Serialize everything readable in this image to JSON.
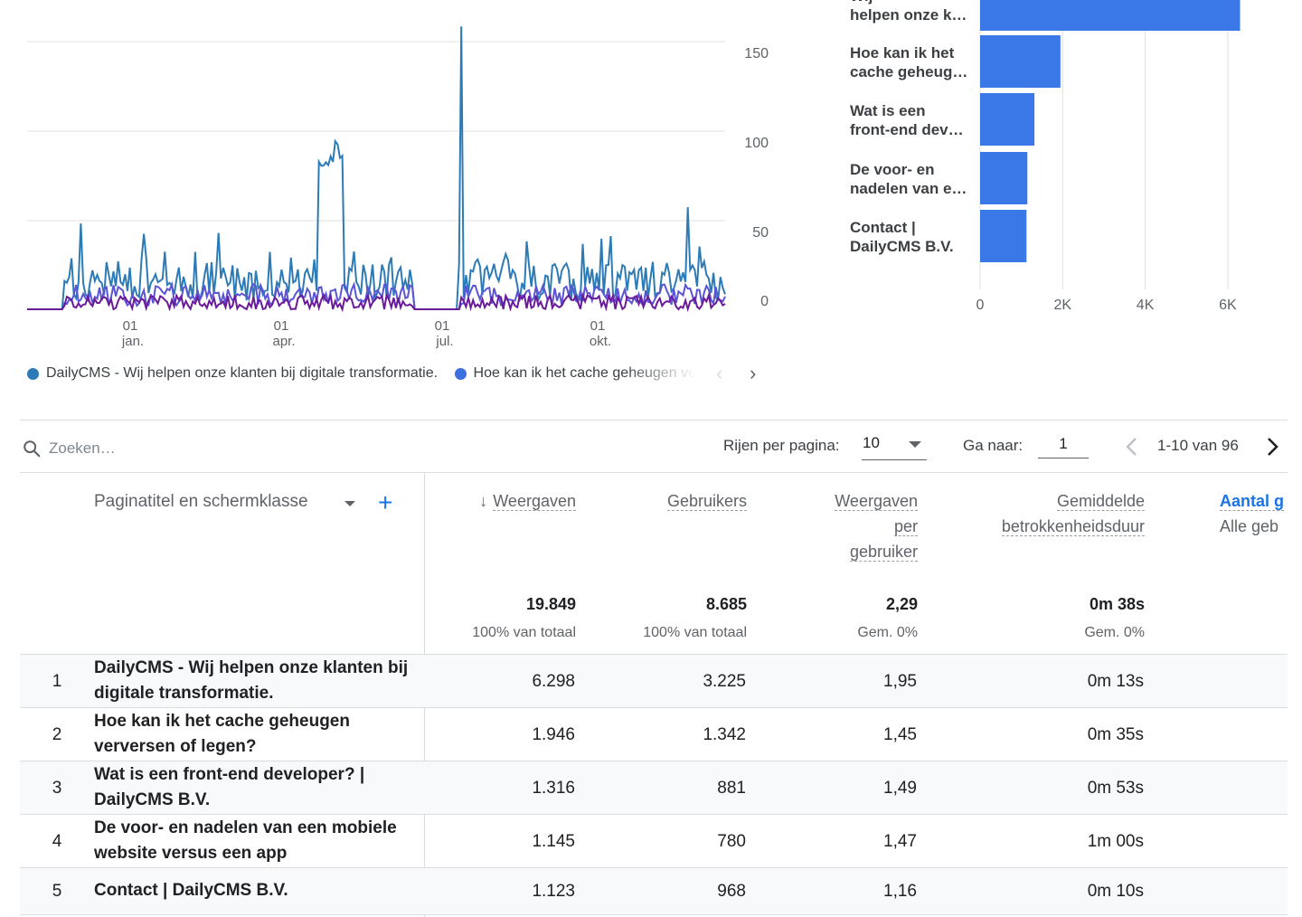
{
  "line_chart": {
    "type": "line",
    "y_ticks": [
      "150",
      "100",
      "50",
      "0"
    ],
    "x_ticks": [
      {
        "day": "01",
        "month": "jan."
      },
      {
        "day": "01",
        "month": "apr."
      },
      {
        "day": "01",
        "month": "jul."
      },
      {
        "day": "01",
        "month": "okt."
      }
    ],
    "legend": [
      {
        "label": "DailyCMS - Wij helpen onze klanten bij digitale transformatie.",
        "color": "#2c7bb6"
      },
      {
        "label": "Hoe kan ik het cache geheugen verversen of legen?",
        "color": "#3b6fe0"
      }
    ],
    "colors": {
      "series1": "#2c7bb6",
      "series2": "#5b55d6",
      "series3": "#6a1b9a"
    }
  },
  "bar_chart": {
    "type": "bar",
    "orientation": "horizontal",
    "categories": [
      [
        "Wij",
        "helpen onze k…"
      ],
      [
        "Hoe kan ik het",
        "cache geheug…"
      ],
      [
        "Wat is een",
        "front-end dev…"
      ],
      [
        "De voor- en",
        "nadelen van e…"
      ],
      [
        "Contact |",
        "DailyCMS B.V."
      ]
    ],
    "values": [
      6298,
      1946,
      1316,
      1145,
      1123
    ],
    "x_ticks": [
      "0",
      "2K",
      "4K",
      "6K"
    ],
    "xlim": [
      0,
      6000
    ],
    "color": "#3b78e7"
  },
  "toolbar": {
    "search_placeholder": "Zoeken…",
    "rows_label": "Rijen per pagina:",
    "rows_value": "10",
    "goto_label": "Ga naar:",
    "goto_value": "1",
    "range": "1-10 van 96"
  },
  "table": {
    "dimension_header": "Paginatitel en schermklasse",
    "columns": [
      {
        "lines": [
          "Weergaven"
        ],
        "sort_arrow": "↓"
      },
      {
        "lines": [
          "Gebruikers"
        ]
      },
      {
        "lines": [
          "Weergaven",
          "per",
          "gebruiker"
        ]
      },
      {
        "lines": [
          "Gemiddelde",
          "betrokkenheidsduur"
        ]
      },
      {
        "lines": [
          "Aantal g"
        ],
        "sub": "Alle geb"
      }
    ],
    "totals": [
      {
        "value": "19.849",
        "sub": "100% van totaal"
      },
      {
        "value": "8.685",
        "sub": "100% van totaal"
      },
      {
        "value": "2,29",
        "sub": "Gem. 0%"
      },
      {
        "value": "0m 38s",
        "sub": "Gem. 0%"
      }
    ],
    "rows": [
      {
        "num": "1",
        "title": "DailyCMS - Wij helpen onze klanten bij digitale transformatie.",
        "values": [
          "6.298",
          "3.225",
          "1,95",
          "0m 13s"
        ]
      },
      {
        "num": "2",
        "title": "Hoe kan ik het cache geheugen verversen of legen?",
        "values": [
          "1.946",
          "1.342",
          "1,45",
          "0m 35s"
        ]
      },
      {
        "num": "3",
        "title": "Wat is een front-end developer? | DailyCMS B.V.",
        "values": [
          "1.316",
          "881",
          "1,49",
          "0m 53s"
        ]
      },
      {
        "num": "4",
        "title": "De voor- en nadelen van een mobiele website versus een app",
        "values": [
          "1.145",
          "780",
          "1,47",
          "1m 00s"
        ]
      },
      {
        "num": "5",
        "title": "Contact | DailyCMS B.V.",
        "values": [
          "1.123",
          "968",
          "1,16",
          "0m 10s"
        ]
      }
    ]
  }
}
